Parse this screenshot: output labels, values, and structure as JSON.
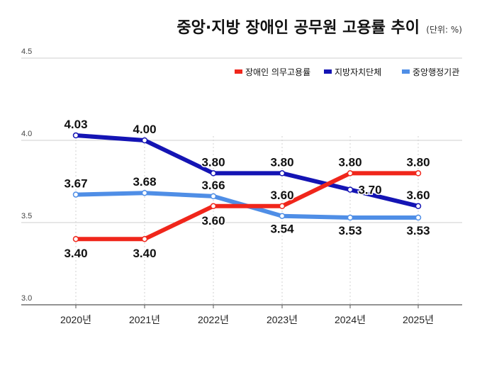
{
  "chart_data": {
    "type": "line",
    "title": "중앙·지방 장애인 공무원 고용률 추이",
    "unit": "(단위: %)",
    "categories": [
      "2020년",
      "2021년",
      "2022년",
      "2023년",
      "2024년",
      "2025년"
    ],
    "ylim": [
      3.0,
      4.5
    ],
    "yticks": [
      "3.0",
      "3.5",
      "4.0",
      "4.5"
    ],
    "grid": true,
    "legend_position": "top-right",
    "series": [
      {
        "name": "장애인 의무고용률",
        "color": "#f0261b",
        "values": [
          3.4,
          3.4,
          3.6,
          3.6,
          3.8,
          3.8
        ],
        "labels": [
          "3.40",
          "3.40",
          "3.60",
          "3.60",
          "3.80",
          "3.80"
        ]
      },
      {
        "name": "지방자치단체",
        "color": "#1414b4",
        "values": [
          4.03,
          4.0,
          3.8,
          3.8,
          3.7,
          3.6
        ],
        "labels": [
          "4.03",
          "4.00",
          "3.80",
          "3.80",
          "3.70",
          "3.60"
        ]
      },
      {
        "name": "중앙행정기관",
        "color": "#4f8ee6",
        "values": [
          3.67,
          3.68,
          3.66,
          3.54,
          3.53,
          3.53
        ],
        "labels": [
          "3.67",
          "3.68",
          "3.66",
          "3.54",
          "3.53",
          "3.53"
        ]
      }
    ]
  }
}
